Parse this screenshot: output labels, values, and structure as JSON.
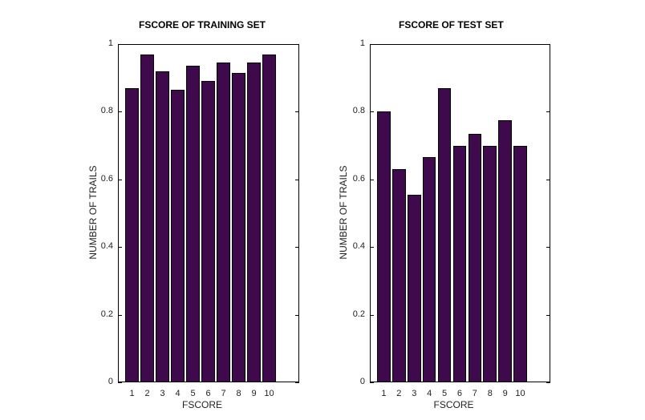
{
  "chart_data": [
    {
      "type": "bar",
      "title": "FSCORE OF TRAINING SET",
      "xlabel": "FSCORE",
      "ylabel": "NUMBER OF TRAILS",
      "categories": [
        "1",
        "2",
        "3",
        "4",
        "5",
        "6",
        "7",
        "8",
        "9",
        "10"
      ],
      "values": [
        0.87,
        0.97,
        0.92,
        0.865,
        0.935,
        0.89,
        0.945,
        0.915,
        0.945,
        0.97
      ],
      "ylim": [
        0,
        1
      ],
      "yticks": [
        "0",
        "0.2",
        "0.4",
        "0.6",
        "0.8",
        "1"
      ],
      "bar_color": "#3f0a4b",
      "grid": false
    },
    {
      "type": "bar",
      "title": "FSCORE OF TEST SET",
      "xlabel": "FSCORE",
      "ylabel": "NUMBER OF TRAILS",
      "categories": [
        "1",
        "2",
        "3",
        "4",
        "5",
        "6",
        "7",
        "8",
        "9",
        "10"
      ],
      "values": [
        0.8,
        0.63,
        0.555,
        0.665,
        0.87,
        0.7,
        0.735,
        0.7,
        0.775,
        0.7
      ],
      "ylim": [
        0,
        1
      ],
      "yticks": [
        "0",
        "0.2",
        "0.4",
        "0.6",
        "0.8",
        "1"
      ],
      "bar_color": "#3f0a4b",
      "grid": false
    }
  ]
}
